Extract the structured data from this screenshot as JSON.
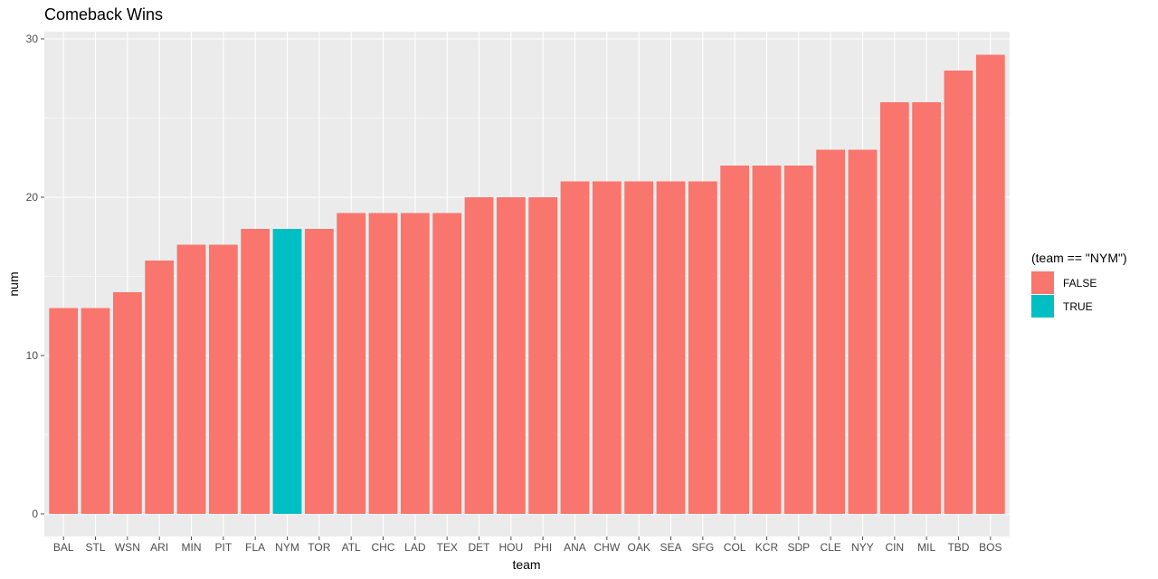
{
  "chart_data": {
    "type": "bar",
    "title": "Comeback Wins",
    "xlabel": "team",
    "ylabel": "num",
    "ylim": [
      0,
      30
    ],
    "yticks": [
      0,
      10,
      20,
      30
    ],
    "grid": true,
    "legend_position": "right",
    "legend_title": "(team == \"NYM\")",
    "legend": [
      {
        "label": "FALSE",
        "color": "#F8766D"
      },
      {
        "label": "TRUE",
        "color": "#00BFC4"
      }
    ],
    "categories": [
      "BAL",
      "STL",
      "WSN",
      "ARI",
      "MIN",
      "PIT",
      "FLA",
      "NYM",
      "TOR",
      "ATL",
      "CHC",
      "LAD",
      "TEX",
      "DET",
      "HOU",
      "PHI",
      "ANA",
      "CHW",
      "OAK",
      "SEA",
      "SFG",
      "COL",
      "KCR",
      "SDP",
      "CLE",
      "NYY",
      "CIN",
      "MIL",
      "TBD",
      "BOS"
    ],
    "values": [
      13,
      13,
      14,
      16,
      17,
      17,
      18,
      18,
      18,
      19,
      19,
      19,
      19,
      20,
      20,
      20,
      21,
      21,
      21,
      21,
      21,
      22,
      22,
      22,
      23,
      23,
      26,
      26,
      28,
      29
    ],
    "highlight": [
      "FALSE",
      "FALSE",
      "FALSE",
      "FALSE",
      "FALSE",
      "FALSE",
      "FALSE",
      "TRUE",
      "FALSE",
      "FALSE",
      "FALSE",
      "FALSE",
      "FALSE",
      "FALSE",
      "FALSE",
      "FALSE",
      "FALSE",
      "FALSE",
      "FALSE",
      "FALSE",
      "FALSE",
      "FALSE",
      "FALSE",
      "FALSE",
      "FALSE",
      "FALSE",
      "FALSE",
      "FALSE",
      "FALSE",
      "FALSE"
    ]
  },
  "colors": {
    "panel_background": "#EBEBEB",
    "false_fill": "#F8766D",
    "true_fill": "#00BFC4"
  }
}
